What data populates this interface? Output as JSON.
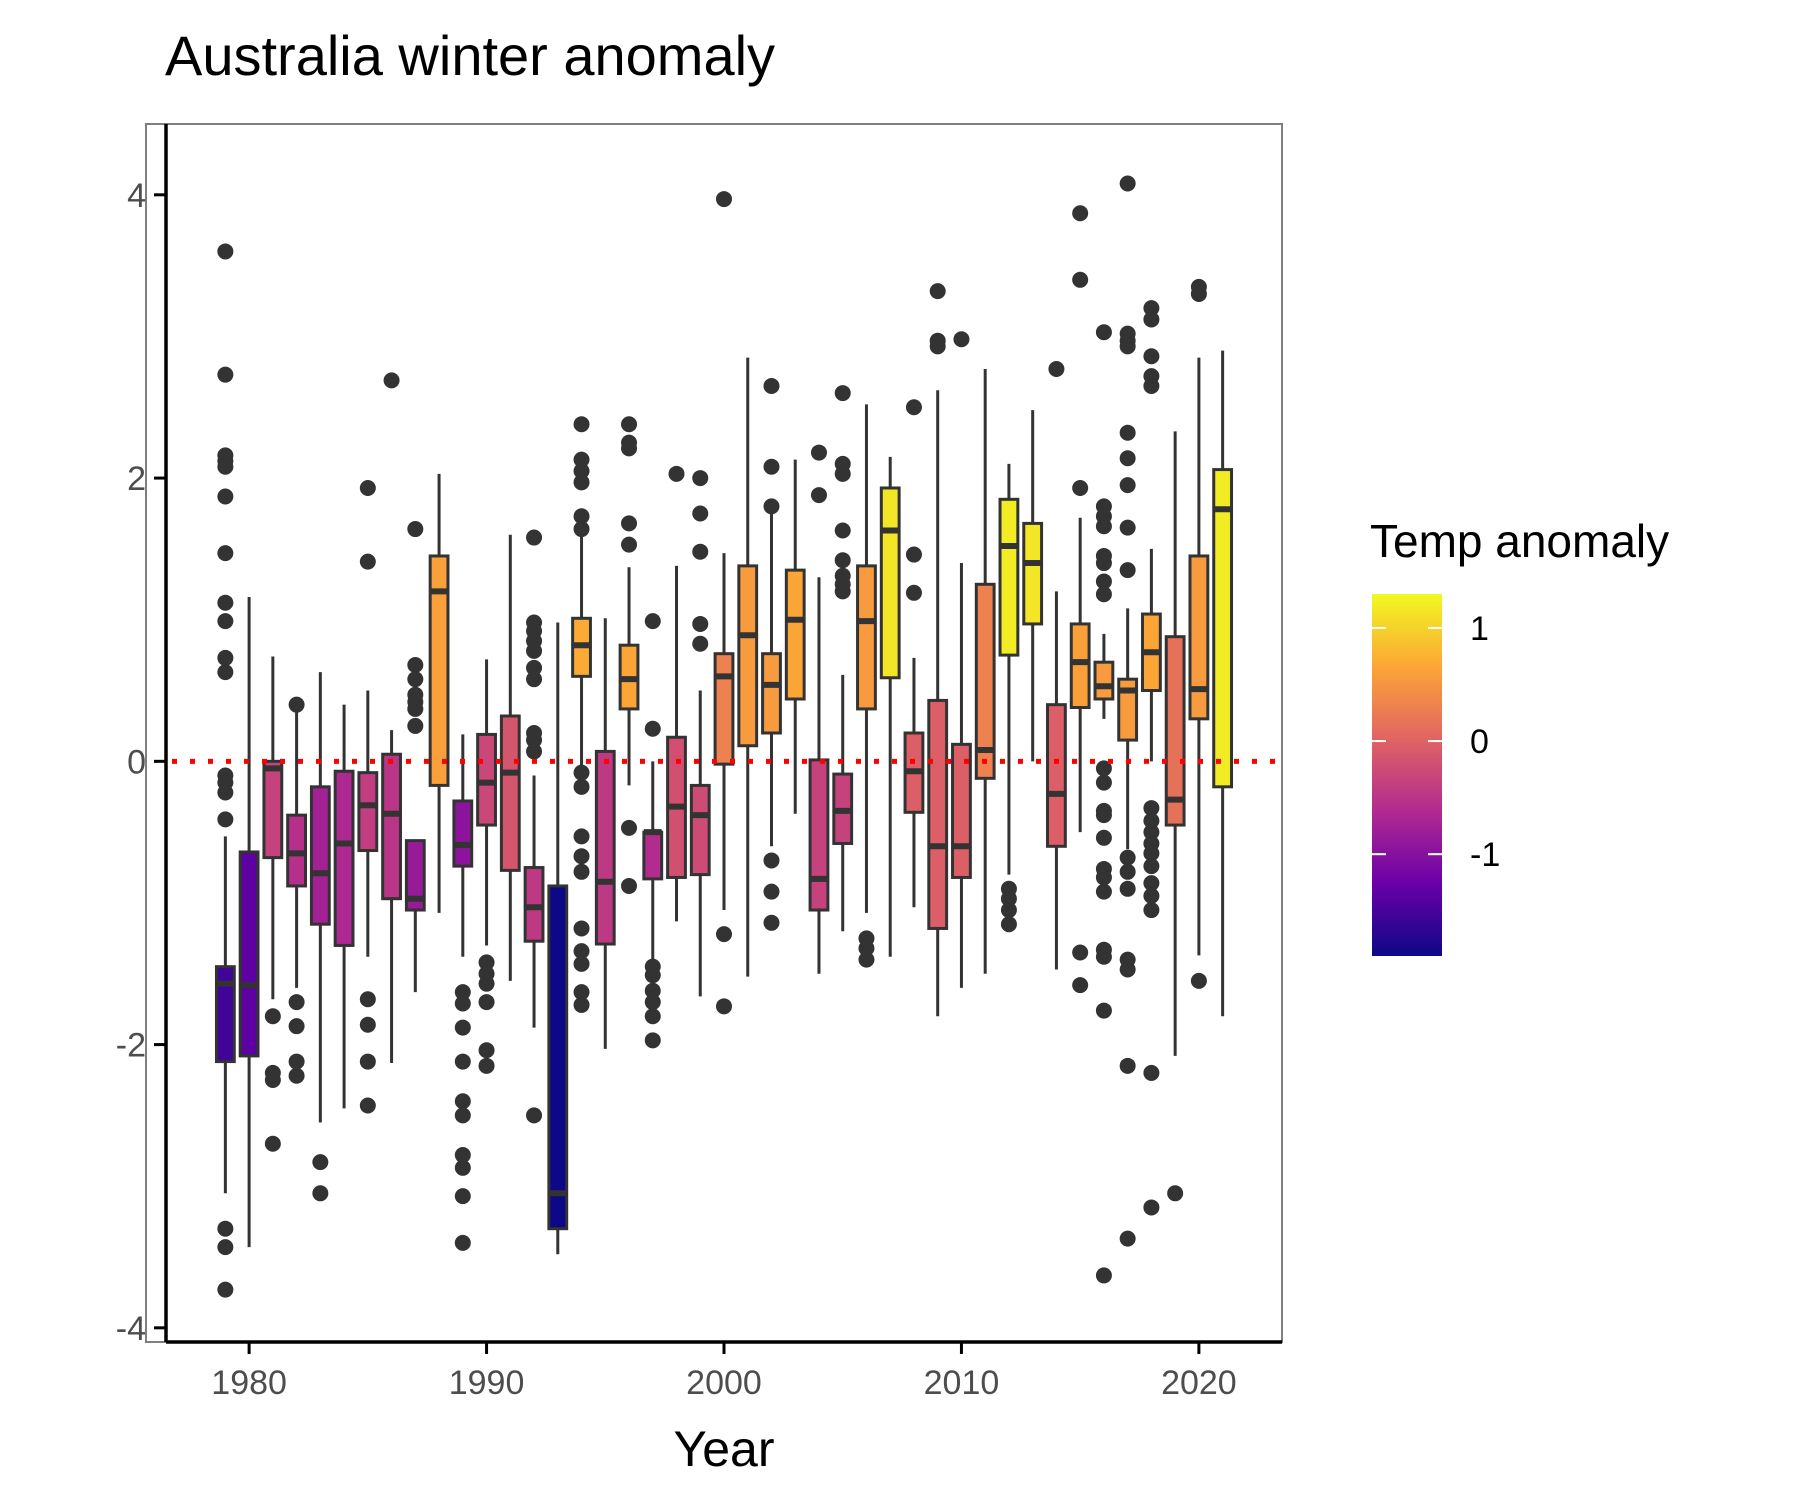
{
  "chart_data": {
    "type": "boxplot",
    "title": "Australia winter anomaly",
    "xlabel": "Year",
    "ylabel": "",
    "xlim": [
      1976.5,
      2023.5
    ],
    "ylim": [
      -4.1,
      4.5
    ],
    "x_ticks": [
      "1980",
      "1990",
      "2000",
      "2010",
      "2020"
    ],
    "x_tick_values": [
      1980,
      1990,
      2000,
      2010,
      2020
    ],
    "y_ticks": [
      "4",
      "2",
      "0",
      "-2",
      "-4"
    ],
    "y_tick_values": [
      4,
      2,
      0,
      -2,
      -4
    ],
    "reference_line": {
      "y": 0,
      "style": "dotted",
      "color": "#ff0000"
    },
    "legend": {
      "title": "Temp anomaly",
      "type": "colorbar",
      "placement": "right",
      "labels": [
        "1",
        "0",
        "-1"
      ],
      "label_values": [
        1,
        0,
        -1
      ],
      "range": [
        -1.9,
        1.3
      ],
      "colormap": [
        "#0d0887",
        "#6a00a8",
        "#b12a90",
        "#e16462",
        "#fca636",
        "#f0f921"
      ]
    },
    "boxes": [
      {
        "year": 1979,
        "q1": -2.12,
        "median": -1.57,
        "q3": -1.45,
        "whisker_low": -3.05,
        "whisker_high": -0.53,
        "fill": -1.55,
        "outliers": [
          3.6,
          2.73,
          2.16,
          2.12,
          2.08,
          1.87,
          1.47,
          1.12,
          0.99,
          0.73,
          0.63,
          -0.1,
          -0.15,
          -0.22,
          -0.41,
          -3.3,
          -3.43,
          -3.73
        ]
      },
      {
        "year": 1980,
        "q1": -2.08,
        "median": -1.58,
        "q3": -0.64,
        "whisker_low": -3.43,
        "whisker_high": 1.16,
        "fill": -1.35,
        "outliers": []
      },
      {
        "year": 1981,
        "q1": -0.68,
        "median": -0.05,
        "q3": 0.0,
        "whisker_low": -1.68,
        "whisker_high": 0.74,
        "fill": -0.35,
        "outliers": [
          -1.8,
          -2.2,
          -2.25,
          -2.7
        ]
      },
      {
        "year": 1982,
        "q1": -0.88,
        "median": -0.65,
        "q3": -0.38,
        "whisker_low": -1.6,
        "whisker_high": 0.35,
        "fill": -0.55,
        "outliers": [
          0.4,
          -1.7,
          -1.87,
          -2.12,
          -2.22
        ]
      },
      {
        "year": 1983,
        "q1": -1.15,
        "median": -0.79,
        "q3": -0.18,
        "whisker_low": -2.55,
        "whisker_high": 0.63,
        "fill": -0.75,
        "outliers": [
          -2.83,
          -3.05
        ]
      },
      {
        "year": 1984,
        "q1": -1.3,
        "median": -0.58,
        "q3": -0.07,
        "whisker_low": -2.45,
        "whisker_high": 0.4,
        "fill": -0.65,
        "outliers": []
      },
      {
        "year": 1985,
        "q1": -0.63,
        "median": -0.31,
        "q3": -0.08,
        "whisker_low": -1.38,
        "whisker_high": 0.5,
        "fill": -0.4,
        "outliers": [
          1.93,
          1.41,
          -1.68,
          -1.86,
          -2.12,
          -2.43
        ]
      },
      {
        "year": 1986,
        "q1": -0.97,
        "median": -0.37,
        "q3": 0.05,
        "whisker_low": -2.13,
        "whisker_high": 0.22,
        "fill": -0.5,
        "outliers": [
          2.69
        ]
      },
      {
        "year": 1987,
        "q1": -1.05,
        "median": -0.97,
        "q3": -0.56,
        "whisker_low": -1.63,
        "whisker_high": -0.56,
        "fill": -0.85,
        "outliers": [
          1.64,
          0.68,
          0.58,
          0.47,
          0.42,
          0.37,
          0.25
        ]
      },
      {
        "year": 1988,
        "q1": -0.17,
        "median": 1.2,
        "q3": 1.45,
        "whisker_low": -1.07,
        "whisker_high": 2.03,
        "fill": 0.6,
        "outliers": []
      },
      {
        "year": 1989,
        "q1": -0.74,
        "median": -0.59,
        "q3": -0.28,
        "whisker_low": -1.38,
        "whisker_high": 0.19,
        "fill": -0.95,
        "outliers": [
          -1.63,
          -1.71,
          -1.88,
          -2.12,
          -2.4,
          -2.5,
          -2.78,
          -2.87,
          -3.07,
          -3.4
        ]
      },
      {
        "year": 1990,
        "q1": -0.45,
        "median": -0.15,
        "q3": 0.19,
        "whisker_low": -1.3,
        "whisker_high": 0.72,
        "fill": -0.3,
        "outliers": [
          -1.42,
          -1.5,
          -1.57,
          -1.7,
          -2.04,
          -2.15
        ]
      },
      {
        "year": 1991,
        "q1": -0.77,
        "median": -0.08,
        "q3": 0.32,
        "whisker_low": -1.55,
        "whisker_high": 1.6,
        "fill": -0.15,
        "outliers": []
      },
      {
        "year": 1992,
        "q1": -1.27,
        "median": -1.03,
        "q3": -0.75,
        "whisker_low": -1.88,
        "whisker_high": -0.1,
        "fill": -0.45,
        "outliers": [
          1.58,
          0.98,
          0.92,
          0.85,
          0.78,
          0.66,
          0.58,
          0.2,
          0.15,
          0.07,
          -2.5
        ]
      },
      {
        "year": 1993,
        "q1": -3.3,
        "median": -3.05,
        "q3": -0.88,
        "whisker_low": -3.48,
        "whisker_high": 0.98,
        "fill": -1.95,
        "outliers": []
      },
      {
        "year": 1994,
        "q1": 0.6,
        "median": 0.82,
        "q3": 1.01,
        "whisker_low": -0.05,
        "whisker_high": 1.6,
        "fill": 0.7,
        "outliers": [
          2.38,
          2.13,
          2.05,
          1.97,
          1.73,
          1.64,
          -0.08,
          -0.18,
          -0.53,
          -0.67,
          -0.78,
          -1.18,
          -1.34,
          -1.43,
          -1.63,
          -1.72
        ]
      },
      {
        "year": 1995,
        "q1": -1.29,
        "median": -0.85,
        "q3": 0.07,
        "whisker_low": -2.03,
        "whisker_high": 1.01,
        "fill": -0.45,
        "outliers": []
      },
      {
        "year": 1996,
        "q1": 0.37,
        "median": 0.58,
        "q3": 0.82,
        "whisker_low": -0.17,
        "whisker_high": 1.37,
        "fill": 0.65,
        "outliers": [
          2.38,
          2.25,
          2.21,
          1.68,
          1.53,
          -0.47,
          -0.88
        ]
      },
      {
        "year": 1997,
        "q1": -0.83,
        "median": -0.5,
        "q3": -0.5,
        "whisker_low": -1.4,
        "whisker_high": 0.0,
        "fill": -0.6,
        "outliers": [
          0.99,
          0.23,
          -1.45,
          -1.51,
          -1.62,
          -1.7,
          -1.8,
          -1.97
        ]
      },
      {
        "year": 1998,
        "q1": -0.82,
        "median": -0.32,
        "q3": 0.17,
        "whisker_low": -1.13,
        "whisker_high": 1.38,
        "fill": -0.2,
        "outliers": [
          2.03
        ]
      },
      {
        "year": 1999,
        "q1": -0.8,
        "median": -0.38,
        "q3": -0.17,
        "whisker_low": -1.66,
        "whisker_high": 0.5,
        "fill": -0.25,
        "outliers": [
          2.0,
          1.75,
          1.48,
          0.97,
          0.83
        ]
      },
      {
        "year": 2000,
        "q1": -0.02,
        "median": 0.6,
        "q3": 0.76,
        "whisker_low": -1.05,
        "whisker_high": 1.47,
        "fill": 0.3,
        "outliers": [
          3.97,
          -1.22,
          -1.73
        ]
      },
      {
        "year": 2001,
        "q1": 0.11,
        "median": 0.89,
        "q3": 1.38,
        "whisker_low": -1.52,
        "whisker_high": 2.85,
        "fill": 0.55,
        "outliers": []
      },
      {
        "year": 2002,
        "q1": 0.2,
        "median": 0.54,
        "q3": 0.76,
        "whisker_low": -0.6,
        "whisker_high": 1.77,
        "fill": 0.55,
        "outliers": [
          2.65,
          2.08,
          1.8,
          -0.7,
          -0.92,
          -1.14
        ]
      },
      {
        "year": 2003,
        "q1": 0.44,
        "median": 1.0,
        "q3": 1.35,
        "whisker_low": -0.37,
        "whisker_high": 2.13,
        "fill": 0.65,
        "outliers": []
      },
      {
        "year": 2004,
        "q1": -1.05,
        "median": -0.83,
        "q3": 0.01,
        "whisker_low": -1.5,
        "whisker_high": 1.3,
        "fill": -0.35,
        "outliers": [
          2.18,
          1.88
        ]
      },
      {
        "year": 2005,
        "q1": -0.58,
        "median": -0.35,
        "q3": -0.09,
        "whisker_low": -1.2,
        "whisker_high": 0.61,
        "fill": -0.35,
        "outliers": [
          2.6,
          2.1,
          2.03,
          1.63,
          1.42,
          1.31,
          1.25,
          1.2
        ]
      },
      {
        "year": 2006,
        "q1": 0.37,
        "median": 0.99,
        "q3": 1.38,
        "whisker_low": -1.07,
        "whisker_high": 2.52,
        "fill": 0.55,
        "outliers": [
          -1.25,
          -1.32,
          -1.4
        ]
      },
      {
        "year": 2007,
        "q1": 0.59,
        "median": 1.63,
        "q3": 1.93,
        "whisker_low": -1.38,
        "whisker_high": 2.15,
        "fill": 1.15,
        "outliers": []
      },
      {
        "year": 2008,
        "q1": -0.36,
        "median": -0.07,
        "q3": 0.2,
        "whisker_low": -1.03,
        "whisker_high": 0.73,
        "fill": -0.05,
        "outliers": [
          2.5,
          1.46,
          1.19
        ]
      },
      {
        "year": 2009,
        "q1": -1.18,
        "median": -0.6,
        "q3": 0.43,
        "whisker_low": -1.8,
        "whisker_high": 2.62,
        "fill": -0.05,
        "outliers": [
          3.32,
          2.97,
          2.93
        ]
      },
      {
        "year": 2010,
        "q1": -0.82,
        "median": -0.6,
        "q3": 0.12,
        "whisker_low": -1.6,
        "whisker_high": 1.4,
        "fill": -0.05,
        "outliers": [
          2.98
        ]
      },
      {
        "year": 2011,
        "q1": -0.12,
        "median": 0.08,
        "q3": 1.25,
        "whisker_low": -1.5,
        "whisker_high": 2.77,
        "fill": 0.3,
        "outliers": []
      },
      {
        "year": 2012,
        "q1": 0.75,
        "median": 1.52,
        "q3": 1.85,
        "whisker_low": -0.8,
        "whisker_high": 2.1,
        "fill": 1.2,
        "outliers": [
          -0.9,
          -0.97,
          -1.05,
          -1.15
        ]
      },
      {
        "year": 2013,
        "q1": 0.97,
        "median": 1.4,
        "q3": 1.68,
        "whisker_low": 0.0,
        "whisker_high": 2.48,
        "fill": 1.15,
        "outliers": []
      },
      {
        "year": 2014,
        "q1": -0.6,
        "median": -0.23,
        "q3": 0.4,
        "whisker_low": -1.47,
        "whisker_high": 1.2,
        "fill": -0.05,
        "outliers": [
          2.77
        ]
      },
      {
        "year": 2015,
        "q1": 0.38,
        "median": 0.7,
        "q3": 0.97,
        "whisker_low": -0.5,
        "whisker_high": 1.72,
        "fill": 0.6,
        "outliers": [
          3.87,
          3.4,
          1.93,
          -1.35,
          -1.58
        ]
      },
      {
        "year": 2016,
        "q1": 0.44,
        "median": 0.53,
        "q3": 0.7,
        "whisker_low": 0.3,
        "whisker_high": 0.9,
        "fill": 0.55,
        "outliers": [
          3.03,
          1.8,
          1.73,
          1.66,
          1.45,
          1.4,
          1.27,
          1.18,
          -0.05,
          -0.15,
          -0.35,
          -0.38,
          -0.54,
          -0.76,
          -0.82,
          -0.92,
          -1.33,
          -1.38,
          -1.76,
          -3.63
        ]
      },
      {
        "year": 2017,
        "q1": 0.15,
        "median": 0.5,
        "q3": 0.58,
        "whisker_low": -0.62,
        "whisker_high": 1.08,
        "fill": 0.55,
        "outliers": [
          4.08,
          3.02,
          2.97,
          2.93,
          2.32,
          2.14,
          1.95,
          1.65,
          1.35,
          -0.68,
          -0.78,
          -0.9,
          -1.4,
          -1.47,
          -2.15,
          -3.37
        ]
      },
      {
        "year": 2018,
        "q1": 0.5,
        "median": 0.77,
        "q3": 1.04,
        "whisker_low": 0.0,
        "whisker_high": 1.5,
        "fill": 0.65,
        "outliers": [
          3.2,
          3.12,
          2.86,
          2.72,
          2.65,
          -0.33,
          -0.42,
          -0.5,
          -0.58,
          -0.65,
          -0.74,
          -0.86,
          -0.95,
          -1.05,
          -2.2,
          -3.15
        ]
      },
      {
        "year": 2019,
        "q1": -0.45,
        "median": -0.27,
        "q3": 0.88,
        "whisker_low": -2.08,
        "whisker_high": 2.33,
        "fill": 0.15,
        "outliers": [
          -3.05
        ]
      },
      {
        "year": 2020,
        "q1": 0.3,
        "median": 0.51,
        "q3": 1.45,
        "whisker_low": -1.37,
        "whisker_high": 2.85,
        "fill": 0.55,
        "outliers": [
          3.35,
          3.3,
          -1.55
        ]
      },
      {
        "year": 2021,
        "q1": -0.18,
        "median": 1.78,
        "q3": 2.06,
        "whisker_low": -1.8,
        "whisker_high": 2.9,
        "fill": 1.2,
        "outliers": []
      }
    ]
  }
}
